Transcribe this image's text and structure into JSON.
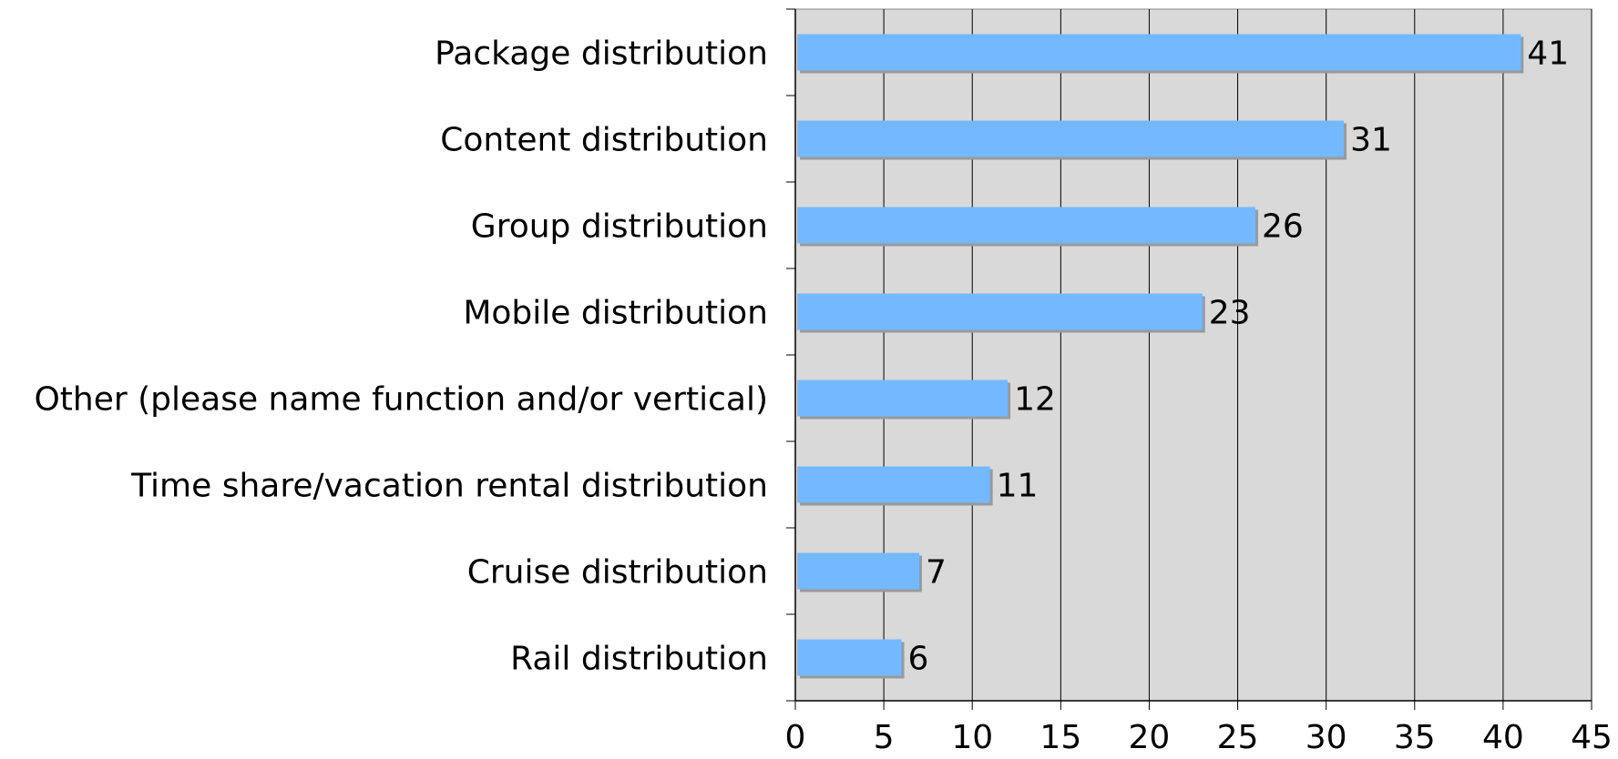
{
  "chart_data": {
    "type": "bar",
    "orientation": "horizontal",
    "categories": [
      "Package distribution",
      "Content distribution",
      "Group distribution",
      "Mobile distribution",
      "Other (please name function and/or vertical)",
      "Time share/vacation rental distribution",
      "Cruise distribution",
      "Rail distribution"
    ],
    "values": [
      41,
      31,
      26,
      23,
      12,
      11,
      7,
      6
    ],
    "title": "",
    "xlabel": "",
    "ylabel": "",
    "xlim": [
      0,
      45
    ],
    "xticks": [
      0,
      5,
      10,
      15,
      20,
      25,
      30,
      35,
      40,
      45
    ],
    "grid": "vertical",
    "legend": "none",
    "colors": {
      "bar": "#74b9ff",
      "bar_shadow": "#9a9a9a",
      "plot_background": "#d9d9d9",
      "grid": "#000000"
    }
  }
}
